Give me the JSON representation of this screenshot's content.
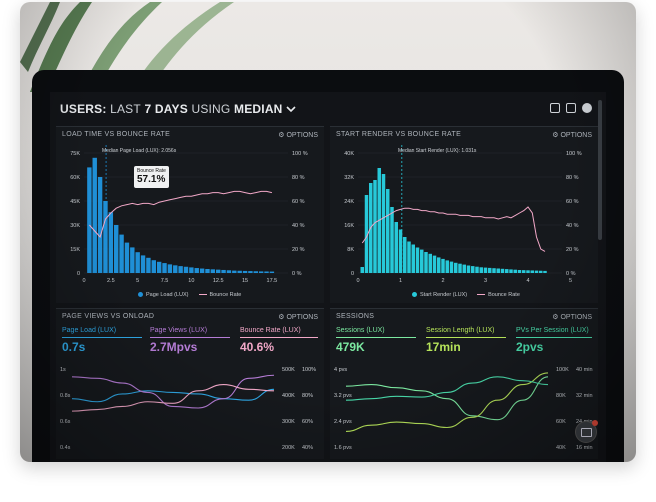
{
  "colors": {
    "accent_bar": "#1f8fd6",
    "accent_cyan": "#27c9d9",
    "pink": "#f2a8c8",
    "purple": "#b57cd6",
    "green": "#7de35a",
    "blue": "#2fa8e6",
    "lime": "#b6e35a",
    "teal": "#48d7a8",
    "mint": "#7ce9a1"
  },
  "header": {
    "prefix": "USERS:",
    "last": "LAST",
    "days": "7 DAYS",
    "using": "USING",
    "median": "MEDIAN",
    "chevron_icon": "chevron-down-icon"
  },
  "panel1": {
    "title": "LOAD TIME VS BOUNCE RATE",
    "options": "⚙ OPTIONS",
    "left_ticks": [
      "75K",
      "60K",
      "45K",
      "30K",
      "15K",
      "0"
    ],
    "right_ticks": [
      "100 %",
      "80 %",
      "60 %",
      "40 %",
      "20 %",
      "0 %"
    ],
    "x_ticks": [
      "0",
      "2.5",
      "5",
      "7.5",
      "10",
      "12.5",
      "15",
      "17.5"
    ],
    "median_label": "Median Page Load (LUX): 2.056s",
    "tooltip_label": "Bounce Rate",
    "tooltip_value": "57.1%",
    "legend_a": "Page Load (LUX)",
    "legend_b": "Bounce Rate"
  },
  "panel2": {
    "title": "START RENDER VS BOUNCE RATE",
    "options": "⚙ OPTIONS",
    "left_ticks": [
      "40K",
      "32K",
      "24K",
      "16K",
      "8K",
      "0"
    ],
    "right_ticks": [
      "100 %",
      "80 %",
      "60 %",
      "40 %",
      "20 %",
      "0 %"
    ],
    "x_ticks": [
      "0",
      "1",
      "2",
      "3",
      "4",
      "5"
    ],
    "median_label": "Median Start Render (LUX): 1.031s",
    "legend_a": "Start Render (LUX)",
    "legend_b": "Bounce Rate"
  },
  "panel3": {
    "title": "PAGE VIEWS VS ONLOAD",
    "options": "⚙ OPTIONS",
    "metrics": [
      {
        "label": "Page Load (LUX)",
        "value": "0.7s"
      },
      {
        "label": "Page Views (LUX)",
        "value": "2.7Mpvs"
      },
      {
        "label": "Bounce Rate (LUX)",
        "value": "40.6%"
      }
    ],
    "left_ticks": [
      "1s",
      "0.8s",
      "0.6s",
      "0.4s"
    ],
    "mid_ticks": [
      "500K",
      "400K",
      "300K",
      "200K"
    ],
    "right_ticks": [
      "100%",
      "80%",
      "60%",
      "40%"
    ]
  },
  "panel4": {
    "title": "SESSIONS",
    "options": "⚙ OPTIONS",
    "metrics": [
      {
        "label": "Sessions (LUX)",
        "value": "479K"
      },
      {
        "label": "Session Length (LUX)",
        "value": "17min"
      },
      {
        "label": "PVs Per Session (LUX)",
        "value": "2pvs"
      }
    ],
    "left_ticks": [
      "4 pvs",
      "3.2 pvs",
      "2.4 pvs",
      "1.6 pvs"
    ],
    "mid_ticks": [
      "100K",
      "80K",
      "60K",
      "40K"
    ],
    "right_ticks": [
      "40 min",
      "32 min",
      "24 min",
      "16 min"
    ]
  },
  "chart_data": [
    {
      "type": "bar",
      "title": "LOAD TIME VS BOUNCE RATE",
      "xlabel": "",
      "ylabel": "",
      "ylim": [
        0,
        75000
      ],
      "x": [
        0.5,
        1,
        1.5,
        2,
        2.5,
        3,
        3.5,
        4,
        4.5,
        5,
        5.5,
        6,
        6.5,
        7,
        7.5,
        8,
        8.5,
        9,
        9.5,
        10,
        10.5,
        11,
        11.5,
        12,
        12.5,
        13,
        13.5,
        14,
        14.5,
        15,
        15.5,
        16,
        16.5,
        17,
        17.5
      ],
      "series": [
        {
          "name": "Page Load (LUX)",
          "values": [
            66000,
            72000,
            60000,
            45000,
            38000,
            30000,
            24000,
            19000,
            16000,
            13000,
            11000,
            9500,
            8000,
            7000,
            6200,
            5400,
            4800,
            4300,
            3900,
            3500,
            3100,
            2800,
            2500,
            2300,
            2100,
            1900,
            1700,
            1500,
            1400,
            1300,
            1200,
            1100,
            1000,
            950,
            900
          ]
        }
      ],
      "line": {
        "name": "Bounce Rate",
        "ylim": [
          0,
          100
        ],
        "values": [
          40,
          35,
          30,
          45,
          50,
          54,
          56,
          57,
          58,
          57,
          58,
          58,
          57,
          59,
          60,
          61,
          62,
          63,
          64,
          64,
          65,
          66,
          66,
          67,
          67,
          66,
          67,
          68,
          68,
          67,
          66,
          67,
          68,
          68,
          67
        ]
      }
    },
    {
      "type": "bar",
      "title": "START RENDER VS BOUNCE RATE",
      "xlabel": "",
      "ylabel": "",
      "ylim": [
        0,
        40000
      ],
      "x": [
        0.1,
        0.2,
        0.3,
        0.4,
        0.5,
        0.6,
        0.7,
        0.8,
        0.9,
        1.0,
        1.1,
        1.2,
        1.3,
        1.4,
        1.5,
        1.6,
        1.7,
        1.8,
        1.9,
        2.0,
        2.1,
        2.2,
        2.3,
        2.4,
        2.5,
        2.6,
        2.7,
        2.8,
        2.9,
        3.0,
        3.1,
        3.2,
        3.3,
        3.4,
        3.5,
        3.6,
        3.7,
        3.8,
        3.9,
        4.0,
        4.1,
        4.2,
        4.3,
        4.4
      ],
      "series": [
        {
          "name": "Start Render (LUX)",
          "values": [
            2000,
            26000,
            30000,
            31000,
            35000,
            33000,
            28000,
            22000,
            17000,
            14500,
            12000,
            10500,
            9500,
            8500,
            7800,
            7000,
            6400,
            5800,
            5200,
            4700,
            4200,
            3800,
            3400,
            3100,
            2800,
            2500,
            2300,
            2100,
            1900,
            1800,
            1700,
            1600,
            1500,
            1400,
            1300,
            1200,
            1100,
            1000,
            950,
            900,
            850,
            800,
            750,
            700
          ]
        }
      ],
      "line": {
        "name": "Bounce Rate",
        "ylim": [
          0,
          100
        ],
        "values": [
          25,
          30,
          38,
          42,
          44,
          46,
          48,
          50,
          52,
          53,
          54,
          54,
          53,
          53,
          52,
          52,
          51,
          51,
          50,
          50,
          49,
          49,
          49,
          48,
          48,
          48,
          47,
          47,
          47,
          46,
          46,
          46,
          45,
          46,
          47,
          46,
          48,
          50,
          52,
          55,
          50,
          30,
          20,
          18
        ]
      }
    },
    {
      "type": "line",
      "title": "PAGE VIEWS VS ONLOAD",
      "x": [
        0,
        1,
        2,
        3,
        4,
        5,
        6,
        7,
        8
      ],
      "series": [
        {
          "name": "Page Load (LUX)",
          "values": [
            0.62,
            0.58,
            0.68,
            0.72,
            0.7,
            0.68,
            0.62,
            0.6,
            0.74
          ]
        },
        {
          "name": "Page Views (LUX)",
          "values": [
            0.9,
            0.88,
            0.82,
            0.7,
            0.52,
            0.5,
            0.62,
            0.88,
            0.92
          ]
        },
        {
          "name": "Bounce Rate (LUX)",
          "values": [
            0.46,
            0.48,
            0.52,
            0.58,
            0.56,
            0.72,
            0.8,
            0.74,
            0.72
          ]
        }
      ]
    },
    {
      "type": "line",
      "title": "SESSIONS",
      "x": [
        0,
        1,
        2,
        3,
        4,
        5,
        6,
        7,
        8
      ],
      "series": [
        {
          "name": "Sessions (LUX)",
          "values": [
            0.78,
            0.8,
            0.76,
            0.72,
            0.62,
            0.4,
            0.35,
            0.6,
            0.9
          ]
        },
        {
          "name": "Session Length (LUX)",
          "values": [
            0.2,
            0.28,
            0.32,
            0.3,
            0.25,
            0.38,
            0.6,
            0.8,
            0.95
          ]
        },
        {
          "name": "PVs Per Session (LUX)",
          "values": [
            0.6,
            0.62,
            0.65,
            0.64,
            0.7,
            0.82,
            0.9,
            0.85,
            0.8
          ]
        }
      ]
    }
  ]
}
